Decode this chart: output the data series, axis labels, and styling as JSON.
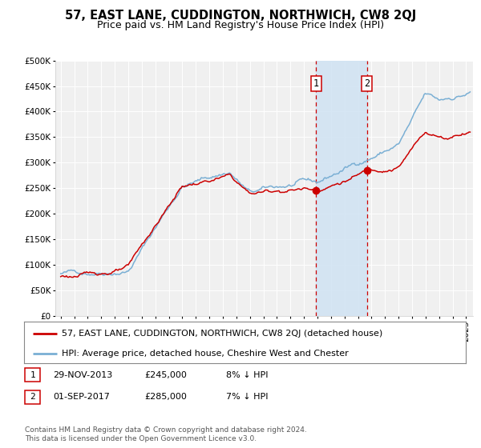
{
  "title": "57, EAST LANE, CUDDINGTON, NORTHWICH, CW8 2QJ",
  "subtitle": "Price paid vs. HM Land Registry's House Price Index (HPI)",
  "ylim": [
    0,
    500000
  ],
  "yticks": [
    0,
    50000,
    100000,
    150000,
    200000,
    250000,
    300000,
    350000,
    400000,
    450000,
    500000
  ],
  "ytick_labels": [
    "£0",
    "£50K",
    "£100K",
    "£150K",
    "£200K",
    "£250K",
    "£300K",
    "£350K",
    "£400K",
    "£450K",
    "£500K"
  ],
  "xlim_start": 1994.6,
  "xlim_end": 2025.5,
  "background_color": "#ffffff",
  "plot_bg_color": "#f0f0f0",
  "grid_color": "#ffffff",
  "sale1_date": 2013.91,
  "sale1_price": 245000,
  "sale1_label": "1",
  "sale2_date": 2017.67,
  "sale2_price": 285000,
  "sale2_label": "2",
  "shade_color": "#cfe2f3",
  "dashed_color": "#cc0000",
  "marker_color": "#cc0000",
  "hpi_color": "#7aafd4",
  "price_color": "#cc0000",
  "legend_label1": "57, EAST LANE, CUDDINGTON, NORTHWICH, CW8 2QJ (detached house)",
  "legend_label2": "HPI: Average price, detached house, Cheshire West and Chester",
  "table_row1": [
    "1",
    "29-NOV-2013",
    "£245,000",
    "8% ↓ HPI"
  ],
  "table_row2": [
    "2",
    "01-SEP-2017",
    "£285,000",
    "7% ↓ HPI"
  ],
  "footnote": "Contains HM Land Registry data © Crown copyright and database right 2024.\nThis data is licensed under the Open Government Licence v3.0.",
  "title_fontsize": 10.5,
  "subtitle_fontsize": 9,
  "tick_fontsize": 7.5,
  "legend_fontsize": 8,
  "table_fontsize": 8,
  "footnote_fontsize": 6.5
}
